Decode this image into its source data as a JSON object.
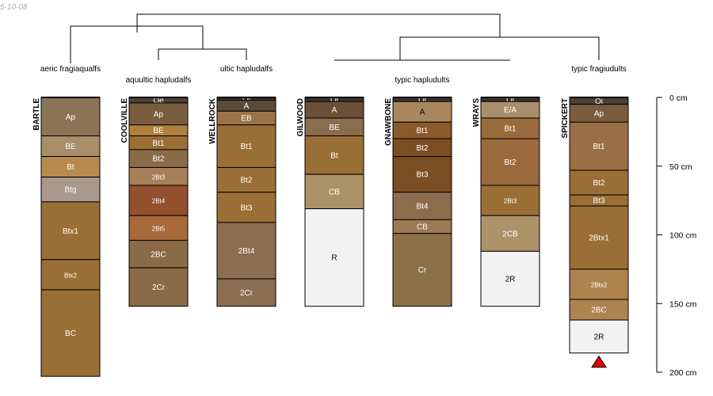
{
  "date_stamp": "5-10-08",
  "taxa": {
    "aeric": "aeric fragiaqualfs",
    "aquultic": "aquultic hapludalfs",
    "ultic": "ultic hapludalfs",
    "typic_hapl": "typic hapludults",
    "typic_frag": "typic fragiudults"
  },
  "depth_axis": {
    "ticks": [
      {
        "value": 0,
        "label": "0 cm"
      },
      {
        "value": 50,
        "label": "50 cm"
      },
      {
        "value": 100,
        "label": "100 cm"
      },
      {
        "value": 150,
        "label": "150 cm"
      },
      {
        "value": 200,
        "label": "200 cm"
      }
    ]
  },
  "chart_data": {
    "type": "soil-profile-sketch",
    "depth_units": "cm",
    "depth_range": [
      0,
      200
    ],
    "profiles": [
      {
        "id": "BARTLE",
        "name": "BARTLE",
        "horizons": [
          {
            "name": "Ap",
            "top": 0,
            "bottom": 28,
            "color": "#8b7355"
          },
          {
            "name": "BE",
            "top": 28,
            "bottom": 43,
            "color": "#a88e6a"
          },
          {
            "name": "Bt",
            "top": 43,
            "bottom": 58,
            "color": "#b88a4e"
          },
          {
            "name": "Btg",
            "top": 58,
            "bottom": 76,
            "color": "#a8998a"
          },
          {
            "name": "Btx1",
            "top": 76,
            "bottom": 118,
            "color": "#9a6f35"
          },
          {
            "name": "Btx2",
            "top": 118,
            "bottom": 140,
            "color": "#9a6f35"
          },
          {
            "name": "BC",
            "top": 140,
            "bottom": 203,
            "color": "#9a6f35"
          }
        ]
      },
      {
        "id": "COOLVILLE",
        "name": "COOLVILLE",
        "horizons": [
          {
            "name": "Oe",
            "top": 0,
            "bottom": 4,
            "color": "#4a4038"
          },
          {
            "name": "Ap",
            "top": 4,
            "bottom": 20,
            "color": "#7a5c3e"
          },
          {
            "name": "BE",
            "top": 20,
            "bottom": 28,
            "color": "#b0813e"
          },
          {
            "name": "Bt1",
            "top": 28,
            "bottom": 38,
            "color": "#9a6f35"
          },
          {
            "name": "Bt2",
            "top": 38,
            "bottom": 51,
            "color": "#8b6a48"
          },
          {
            "name": "2Bt3",
            "top": 51,
            "bottom": 64,
            "color": "#a88058"
          },
          {
            "name": "2Bt4",
            "top": 64,
            "bottom": 86,
            "color": "#93502f"
          },
          {
            "name": "2Bt5",
            "top": 86,
            "bottom": 104,
            "color": "#a86a3a"
          },
          {
            "name": "2BC",
            "top": 104,
            "bottom": 124,
            "color": "#8b6a48"
          },
          {
            "name": "2Cr",
            "top": 124,
            "bottom": 152,
            "color": "#8b6a48"
          }
        ]
      },
      {
        "id": "WELLROCK",
        "name": "WELLROCK",
        "horizons": [
          {
            "name": "Oi",
            "top": 0,
            "bottom": 2,
            "color": "#3a3530"
          },
          {
            "name": "A",
            "top": 2,
            "bottom": 10,
            "color": "#5c4a38"
          },
          {
            "name": "EB",
            "top": 10,
            "bottom": 20,
            "color": "#9a7448"
          },
          {
            "name": "Bt1",
            "top": 20,
            "bottom": 51,
            "color": "#9a6f35"
          },
          {
            "name": "Bt2",
            "top": 51,
            "bottom": 69,
            "color": "#9a6f35"
          },
          {
            "name": "Bt3",
            "top": 69,
            "bottom": 91,
            "color": "#9a6f35"
          },
          {
            "name": "2Bt4",
            "top": 91,
            "bottom": 132,
            "color": "#8b6d50"
          },
          {
            "name": "2Cr",
            "top": 132,
            "bottom": 152,
            "color": "#8b6d50"
          }
        ]
      },
      {
        "id": "GILWOOD",
        "name": "GILWOOD",
        "horizons": [
          {
            "name": "Oi",
            "top": 0,
            "bottom": 3,
            "color": "#3a3530"
          },
          {
            "name": "A",
            "top": 3,
            "bottom": 15,
            "color": "#6b5037"
          },
          {
            "name": "BE",
            "top": 15,
            "bottom": 28,
            "color": "#8b6d4e"
          },
          {
            "name": "Bt",
            "top": 28,
            "bottom": 56,
            "color": "#9a6f35"
          },
          {
            "name": "CB",
            "top": 56,
            "bottom": 81,
            "color": "#ad9268"
          },
          {
            "name": "R",
            "top": 81,
            "bottom": 152,
            "color": "#f2f2f2",
            "dark": true
          }
        ]
      },
      {
        "id": "GNAWBONE",
        "name": "GNAWBONE",
        "horizons": [
          {
            "name": "Oi",
            "top": 0,
            "bottom": 3,
            "color": "#3a3530"
          },
          {
            "name": "A",
            "top": 3,
            "bottom": 18,
            "color": "#a8875e",
            "dark": true
          },
          {
            "name": "Bt1",
            "top": 18,
            "bottom": 30,
            "color": "#8a5a2a"
          },
          {
            "name": "Bt2",
            "top": 30,
            "bottom": 43,
            "color": "#7a4e22"
          },
          {
            "name": "Bt3",
            "top": 43,
            "bottom": 69,
            "color": "#7a4e22"
          },
          {
            "name": "Bt4",
            "top": 69,
            "bottom": 89,
            "color": "#8b6d4e"
          },
          {
            "name": "CB",
            "top": 89,
            "bottom": 99,
            "color": "#9c7a52"
          },
          {
            "name": "Cr",
            "top": 99,
            "bottom": 152,
            "color": "#8b7048"
          }
        ]
      },
      {
        "id": "WRAYS",
        "name": "WRAYS",
        "horizons": [
          {
            "name": "Oi",
            "top": 0,
            "bottom": 3,
            "color": "#3a3530"
          },
          {
            "name": "E/A",
            "top": 3,
            "bottom": 15,
            "color": "#a88e6a"
          },
          {
            "name": "Bt1",
            "top": 15,
            "bottom": 30,
            "color": "#9a6a3c"
          },
          {
            "name": "Bt2",
            "top": 30,
            "bottom": 64,
            "color": "#9a6a3c"
          },
          {
            "name": "2Bt3",
            "top": 64,
            "bottom": 86,
            "color": "#9a6f35"
          },
          {
            "name": "2CB",
            "top": 86,
            "bottom": 112,
            "color": "#ad9268"
          },
          {
            "name": "2R",
            "top": 112,
            "bottom": 152,
            "color": "#f2f2f2",
            "dark": true
          }
        ]
      },
      {
        "id": "SPICKERT",
        "name": "SPICKERT",
        "horizons": [
          {
            "name": "Oi",
            "top": 0,
            "bottom": 5,
            "color": "#4a4038"
          },
          {
            "name": "Ap",
            "top": 5,
            "bottom": 18,
            "color": "#7a5c3e"
          },
          {
            "name": "Bt1",
            "top": 18,
            "bottom": 53,
            "color": "#9a6f45"
          },
          {
            "name": "Bt2",
            "top": 53,
            "bottom": 71,
            "color": "#9a6f35"
          },
          {
            "name": "Bt3",
            "top": 71,
            "bottom": 79,
            "color": "#9a6f35"
          },
          {
            "name": "2Btx1",
            "top": 79,
            "bottom": 125,
            "color": "#9a6f35"
          },
          {
            "name": "2Btx2",
            "top": 125,
            "bottom": 147,
            "color": "#ad8450"
          },
          {
            "name": "2BC",
            "top": 147,
            "bottom": 162,
            "color": "#ad8450"
          },
          {
            "name": "2R",
            "top": 162,
            "bottom": 186,
            "color": "#f2f2f2",
            "dark": true
          }
        ],
        "marker": "red-triangle"
      }
    ]
  }
}
